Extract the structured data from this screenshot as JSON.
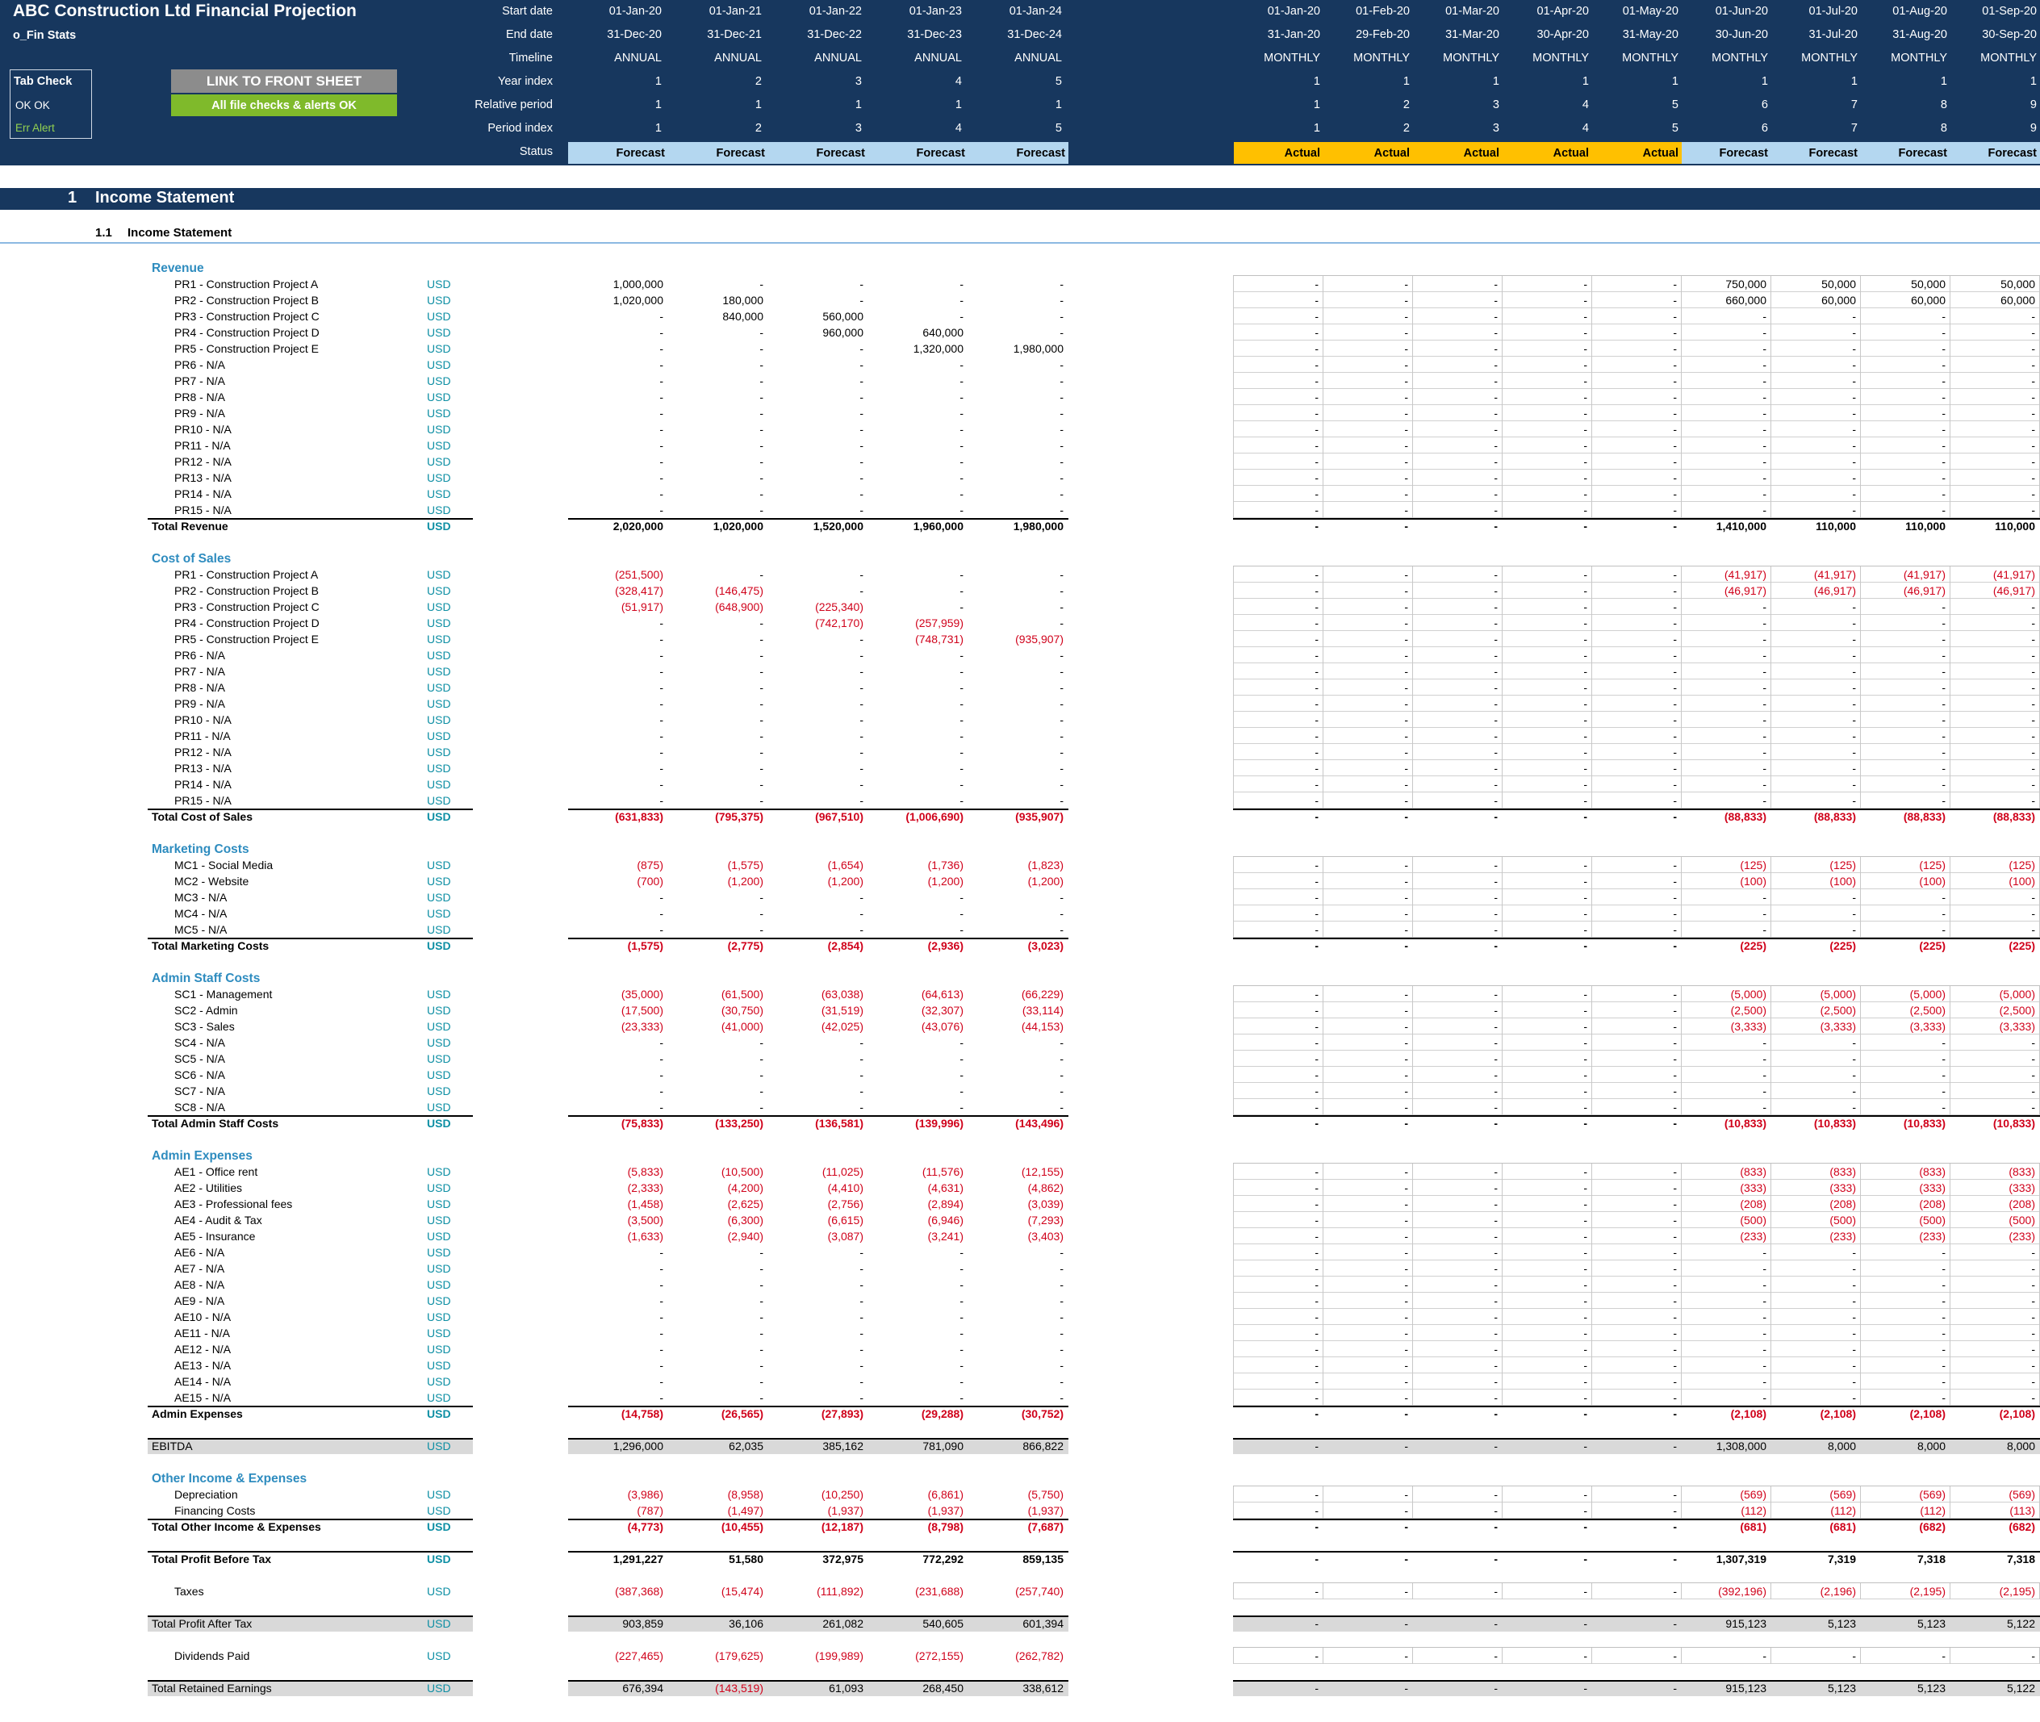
{
  "header": {
    "title": "ABC Construction Ltd Financial Projection",
    "sheet": "o_Fin Stats",
    "tab_check": {
      "title": "Tab Check",
      "ok_row": "OK    OK",
      "err_row": "Err   Alert"
    },
    "link_button": "LINK TO FRONT SHEET",
    "checks_status": "All file checks & alerts OK",
    "row_labels": [
      "Start date",
      "End date",
      "Timeline",
      "Year index",
      "Relative period",
      "Period index",
      "Status"
    ],
    "annual": {
      "start": [
        "01-Jan-20",
        "01-Jan-21",
        "01-Jan-22",
        "01-Jan-23",
        "01-Jan-24"
      ],
      "end": [
        "31-Dec-20",
        "31-Dec-21",
        "31-Dec-22",
        "31-Dec-23",
        "31-Dec-24"
      ],
      "timeline": [
        "ANNUAL",
        "ANNUAL",
        "ANNUAL",
        "ANNUAL",
        "ANNUAL"
      ],
      "year_index": [
        "1",
        "2",
        "3",
        "4",
        "5"
      ],
      "relative": [
        "1",
        "1",
        "1",
        "1",
        "1"
      ],
      "period": [
        "1",
        "2",
        "3",
        "4",
        "5"
      ],
      "status": [
        "Forecast",
        "Forecast",
        "Forecast",
        "Forecast",
        "Forecast"
      ]
    },
    "monthly": {
      "start": [
        "01-Jan-20",
        "01-Feb-20",
        "01-Mar-20",
        "01-Apr-20",
        "01-May-20",
        "01-Jun-20",
        "01-Jul-20",
        "01-Aug-20",
        "01-Sep-20"
      ],
      "end": [
        "31-Jan-20",
        "29-Feb-20",
        "31-Mar-20",
        "30-Apr-20",
        "31-May-20",
        "30-Jun-20",
        "31-Jul-20",
        "31-Aug-20",
        "30-Sep-20"
      ],
      "timeline": [
        "MONTHLY",
        "MONTHLY",
        "MONTHLY",
        "MONTHLY",
        "MONTHLY",
        "MONTHLY",
        "MONTHLY",
        "MONTHLY",
        "MONTHLY"
      ],
      "year_index": [
        "1",
        "1",
        "1",
        "1",
        "1",
        "1",
        "1",
        "1",
        "1"
      ],
      "relative": [
        "1",
        "2",
        "3",
        "4",
        "5",
        "6",
        "7",
        "8",
        "9"
      ],
      "period": [
        "1",
        "2",
        "3",
        "4",
        "5",
        "6",
        "7",
        "8",
        "9"
      ],
      "status": [
        "Actual",
        "Actual",
        "Actual",
        "Actual",
        "Actual",
        "Forecast",
        "Forecast",
        "Forecast",
        "Forecast"
      ]
    }
  },
  "section": {
    "number": "1",
    "title": "Income Statement"
  },
  "subsection": {
    "number": "1.1",
    "title": "Income Statement"
  },
  "unit": "USD",
  "colors": {
    "header_bg": "#17375e",
    "forecast": "#b4d7f0",
    "actual": "#ffc000",
    "negative": "#d0021b",
    "group_label": "#2e8cbf",
    "unit": "#0e8fa4"
  },
  "rows": [
    {
      "type": "group",
      "label": "Revenue"
    },
    {
      "type": "item",
      "label": "PR1 - Construction Project A",
      "annual": [
        "1,000,000",
        "-",
        "-",
        "-",
        "-"
      ],
      "monthly": [
        "-",
        "-",
        "-",
        "-",
        "-",
        "750,000",
        "50,000",
        "50,000",
        "50,000"
      ]
    },
    {
      "type": "item",
      "label": "PR2 - Construction Project B",
      "annual": [
        "1,020,000",
        "180,000",
        "-",
        "-",
        "-"
      ],
      "monthly": [
        "-",
        "-",
        "-",
        "-",
        "-",
        "660,000",
        "60,000",
        "60,000",
        "60,000"
      ]
    },
    {
      "type": "item",
      "label": "PR3 - Construction Project C",
      "annual": [
        "-",
        "840,000",
        "560,000",
        "-",
        "-"
      ],
      "monthly": [
        "-",
        "-",
        "-",
        "-",
        "-",
        "-",
        "-",
        "-",
        "-"
      ]
    },
    {
      "type": "item",
      "label": "PR4 - Construction Project D",
      "annual": [
        "-",
        "-",
        "960,000",
        "640,000",
        "-"
      ],
      "monthly": [
        "-",
        "-",
        "-",
        "-",
        "-",
        "-",
        "-",
        "-",
        "-"
      ]
    },
    {
      "type": "item",
      "label": "PR5 - Construction Project E",
      "annual": [
        "-",
        "-",
        "-",
        "1,320,000",
        "1,980,000"
      ],
      "monthly": [
        "-",
        "-",
        "-",
        "-",
        "-",
        "-",
        "-",
        "-",
        "-"
      ]
    },
    {
      "type": "item",
      "label": "PR6 - N/A"
    },
    {
      "type": "item",
      "label": "PR7 - N/A"
    },
    {
      "type": "item",
      "label": "PR8 - N/A"
    },
    {
      "type": "item",
      "label": "PR9 - N/A"
    },
    {
      "type": "item",
      "label": "PR10 - N/A"
    },
    {
      "type": "item",
      "label": "PR11 - N/A"
    },
    {
      "type": "item",
      "label": "PR12 - N/A"
    },
    {
      "type": "item",
      "label": "PR13 - N/A"
    },
    {
      "type": "item",
      "label": "PR14 - N/A"
    },
    {
      "type": "item",
      "label": "PR15 - N/A"
    },
    {
      "type": "total",
      "label": "Total Revenue",
      "annual": [
        "2,020,000",
        "1,020,000",
        "1,520,000",
        "1,960,000",
        "1,980,000"
      ],
      "monthly": [
        "-",
        "-",
        "-",
        "-",
        "-",
        "1,410,000",
        "110,000",
        "110,000",
        "110,000"
      ]
    },
    {
      "type": "spacer"
    },
    {
      "type": "group",
      "label": "Cost of Sales"
    },
    {
      "type": "item",
      "label": "PR1 - Construction Project A",
      "annual": [
        "(251,500)",
        "-",
        "-",
        "-",
        "-"
      ],
      "monthly": [
        "-",
        "-",
        "-",
        "-",
        "-",
        "(41,917)",
        "(41,917)",
        "(41,917)",
        "(41,917)"
      ]
    },
    {
      "type": "item",
      "label": "PR2 - Construction Project B",
      "annual": [
        "(328,417)",
        "(146,475)",
        "-",
        "-",
        "-"
      ],
      "monthly": [
        "-",
        "-",
        "-",
        "-",
        "-",
        "(46,917)",
        "(46,917)",
        "(46,917)",
        "(46,917)"
      ]
    },
    {
      "type": "item",
      "label": "PR3 - Construction Project C",
      "annual": [
        "(51,917)",
        "(648,900)",
        "(225,340)",
        "-",
        "-"
      ],
      "monthly": [
        "-",
        "-",
        "-",
        "-",
        "-",
        "-",
        "-",
        "-",
        "-"
      ]
    },
    {
      "type": "item",
      "label": "PR4 - Construction Project D",
      "annual": [
        "-",
        "-",
        "(742,170)",
        "(257,959)",
        "-"
      ],
      "monthly": [
        "-",
        "-",
        "-",
        "-",
        "-",
        "-",
        "-",
        "-",
        "-"
      ]
    },
    {
      "type": "item",
      "label": "PR5 - Construction Project E",
      "annual": [
        "-",
        "-",
        "-",
        "(748,731)",
        "(935,907)"
      ],
      "monthly": [
        "-",
        "-",
        "-",
        "-",
        "-",
        "-",
        "-",
        "-",
        "-"
      ]
    },
    {
      "type": "item",
      "label": "PR6 - N/A"
    },
    {
      "type": "item",
      "label": "PR7 - N/A"
    },
    {
      "type": "item",
      "label": "PR8 - N/A"
    },
    {
      "type": "item",
      "label": "PR9 - N/A"
    },
    {
      "type": "item",
      "label": "PR10 - N/A"
    },
    {
      "type": "item",
      "label": "PR11 - N/A"
    },
    {
      "type": "item",
      "label": "PR12 - N/A"
    },
    {
      "type": "item",
      "label": "PR13 - N/A"
    },
    {
      "type": "item",
      "label": "PR14 - N/A"
    },
    {
      "type": "item",
      "label": "PR15 - N/A"
    },
    {
      "type": "total",
      "label": "Total Cost of Sales",
      "annual": [
        "(631,833)",
        "(795,375)",
        "(967,510)",
        "(1,006,690)",
        "(935,907)"
      ],
      "monthly": [
        "-",
        "-",
        "-",
        "-",
        "-",
        "(88,833)",
        "(88,833)",
        "(88,833)",
        "(88,833)"
      ]
    },
    {
      "type": "spacer"
    },
    {
      "type": "group",
      "label": "Marketing Costs"
    },
    {
      "type": "item",
      "label": "MC1 - Social Media",
      "annual": [
        "(875)",
        "(1,575)",
        "(1,654)",
        "(1,736)",
        "(1,823)"
      ],
      "monthly": [
        "-",
        "-",
        "-",
        "-",
        "-",
        "(125)",
        "(125)",
        "(125)",
        "(125)"
      ]
    },
    {
      "type": "item",
      "label": "MC2 - Website",
      "annual": [
        "(700)",
        "(1,200)",
        "(1,200)",
        "(1,200)",
        "(1,200)"
      ],
      "monthly": [
        "-",
        "-",
        "-",
        "-",
        "-",
        "(100)",
        "(100)",
        "(100)",
        "(100)"
      ]
    },
    {
      "type": "item",
      "label": "MC3 - N/A"
    },
    {
      "type": "item",
      "label": "MC4 - N/A"
    },
    {
      "type": "item",
      "label": "MC5 - N/A"
    },
    {
      "type": "total",
      "label": "Total Marketing Costs",
      "annual": [
        "(1,575)",
        "(2,775)",
        "(2,854)",
        "(2,936)",
        "(3,023)"
      ],
      "monthly": [
        "-",
        "-",
        "-",
        "-",
        "-",
        "(225)",
        "(225)",
        "(225)",
        "(225)"
      ]
    },
    {
      "type": "spacer"
    },
    {
      "type": "group",
      "label": "Admin Staff Costs"
    },
    {
      "type": "item",
      "label": "SC1 - Management",
      "annual": [
        "(35,000)",
        "(61,500)",
        "(63,038)",
        "(64,613)",
        "(66,229)"
      ],
      "monthly": [
        "-",
        "-",
        "-",
        "-",
        "-",
        "(5,000)",
        "(5,000)",
        "(5,000)",
        "(5,000)"
      ]
    },
    {
      "type": "item",
      "label": "SC2 - Admin",
      "annual": [
        "(17,500)",
        "(30,750)",
        "(31,519)",
        "(32,307)",
        "(33,114)"
      ],
      "monthly": [
        "-",
        "-",
        "-",
        "-",
        "-",
        "(2,500)",
        "(2,500)",
        "(2,500)",
        "(2,500)"
      ]
    },
    {
      "type": "item",
      "label": "SC3 - Sales",
      "annual": [
        "(23,333)",
        "(41,000)",
        "(42,025)",
        "(43,076)",
        "(44,153)"
      ],
      "monthly": [
        "-",
        "-",
        "-",
        "-",
        "-",
        "(3,333)",
        "(3,333)",
        "(3,333)",
        "(3,333)"
      ]
    },
    {
      "type": "item",
      "label": "SC4 - N/A"
    },
    {
      "type": "item",
      "label": "SC5 - N/A"
    },
    {
      "type": "item",
      "label": "SC6 - N/A"
    },
    {
      "type": "item",
      "label": "SC7 - N/A"
    },
    {
      "type": "item",
      "label": "SC8 - N/A"
    },
    {
      "type": "total",
      "label": "Total Admin Staff Costs",
      "annual": [
        "(75,833)",
        "(133,250)",
        "(136,581)",
        "(139,996)",
        "(143,496)"
      ],
      "monthly": [
        "-",
        "-",
        "-",
        "-",
        "-",
        "(10,833)",
        "(10,833)",
        "(10,833)",
        "(10,833)"
      ]
    },
    {
      "type": "spacer"
    },
    {
      "type": "group",
      "label": "Admin Expenses"
    },
    {
      "type": "item",
      "label": "AE1 - Office rent",
      "annual": [
        "(5,833)",
        "(10,500)",
        "(11,025)",
        "(11,576)",
        "(12,155)"
      ],
      "monthly": [
        "-",
        "-",
        "-",
        "-",
        "-",
        "(833)",
        "(833)",
        "(833)",
        "(833)"
      ]
    },
    {
      "type": "item",
      "label": "AE2 - Utilities",
      "annual": [
        "(2,333)",
        "(4,200)",
        "(4,410)",
        "(4,631)",
        "(4,862)"
      ],
      "monthly": [
        "-",
        "-",
        "-",
        "-",
        "-",
        "(333)",
        "(333)",
        "(333)",
        "(333)"
      ]
    },
    {
      "type": "item",
      "label": "AE3 - Professional fees",
      "annual": [
        "(1,458)",
        "(2,625)",
        "(2,756)",
        "(2,894)",
        "(3,039)"
      ],
      "monthly": [
        "-",
        "-",
        "-",
        "-",
        "-",
        "(208)",
        "(208)",
        "(208)",
        "(208)"
      ]
    },
    {
      "type": "item",
      "label": "AE4 - Audit & Tax",
      "annual": [
        "(3,500)",
        "(6,300)",
        "(6,615)",
        "(6,946)",
        "(7,293)"
      ],
      "monthly": [
        "-",
        "-",
        "-",
        "-",
        "-",
        "(500)",
        "(500)",
        "(500)",
        "(500)"
      ]
    },
    {
      "type": "item",
      "label": "AE5 - Insurance",
      "annual": [
        "(1,633)",
        "(2,940)",
        "(3,087)",
        "(3,241)",
        "(3,403)"
      ],
      "monthly": [
        "-",
        "-",
        "-",
        "-",
        "-",
        "(233)",
        "(233)",
        "(233)",
        "(233)"
      ]
    },
    {
      "type": "item",
      "label": "AE6 - N/A"
    },
    {
      "type": "item",
      "label": "AE7 - N/A"
    },
    {
      "type": "item",
      "label": "AE8 - N/A"
    },
    {
      "type": "item",
      "label": "AE9 - N/A"
    },
    {
      "type": "item",
      "label": "AE10 - N/A"
    },
    {
      "type": "item",
      "label": "AE11 - N/A"
    },
    {
      "type": "item",
      "label": "AE12 - N/A"
    },
    {
      "type": "item",
      "label": "AE13 - N/A"
    },
    {
      "type": "item",
      "label": "AE14 - N/A"
    },
    {
      "type": "item",
      "label": "AE15 - N/A"
    },
    {
      "type": "total",
      "label": "Admin Expenses",
      "annual": [
        "(14,758)",
        "(26,565)",
        "(27,893)",
        "(29,288)",
        "(30,752)"
      ],
      "monthly": [
        "-",
        "-",
        "-",
        "-",
        "-",
        "(2,108)",
        "(2,108)",
        "(2,108)",
        "(2,108)"
      ]
    },
    {
      "type": "spacer"
    },
    {
      "type": "grey",
      "label": "EBITDA",
      "annual": [
        "1,296,000",
        "62,035",
        "385,162",
        "781,090",
        "866,822"
      ],
      "monthly": [
        "-",
        "-",
        "-",
        "-",
        "-",
        "1,308,000",
        "8,000",
        "8,000",
        "8,000"
      ]
    },
    {
      "type": "spacer"
    },
    {
      "type": "group",
      "label": "Other Income & Expenses"
    },
    {
      "type": "item",
      "label": "Depreciation",
      "annual": [
        "(3,986)",
        "(8,958)",
        "(10,250)",
        "(6,861)",
        "(5,750)"
      ],
      "monthly": [
        "-",
        "-",
        "-",
        "-",
        "-",
        "(569)",
        "(569)",
        "(569)",
        "(569)"
      ]
    },
    {
      "type": "item",
      "label": "Financing Costs",
      "annual": [
        "(787)",
        "(1,497)",
        "(1,937)",
        "(1,937)",
        "(1,937)"
      ],
      "monthly": [
        "-",
        "-",
        "-",
        "-",
        "-",
        "(112)",
        "(112)",
        "(112)",
        "(113)"
      ]
    },
    {
      "type": "total",
      "label": "Total Other Income & Expenses",
      "annual": [
        "(4,773)",
        "(10,455)",
        "(12,187)",
        "(8,798)",
        "(7,687)"
      ],
      "monthly": [
        "-",
        "-",
        "-",
        "-",
        "-",
        "(681)",
        "(681)",
        "(682)",
        "(682)"
      ]
    },
    {
      "type": "spacer"
    },
    {
      "type": "total",
      "label": "Total Profit Before Tax",
      "annual": [
        "1,291,227",
        "51,580",
        "372,975",
        "772,292",
        "859,135"
      ],
      "monthly": [
        "-",
        "-",
        "-",
        "-",
        "-",
        "1,307,319",
        "7,319",
        "7,318",
        "7,318"
      ]
    },
    {
      "type": "spacer"
    },
    {
      "type": "single",
      "label": "Taxes",
      "annual": [
        "(387,368)",
        "(15,474)",
        "(111,892)",
        "(231,688)",
        "(257,740)"
      ],
      "monthly": [
        "-",
        "-",
        "-",
        "-",
        "-",
        "(392,196)",
        "(2,196)",
        "(2,195)",
        "(2,195)"
      ]
    },
    {
      "type": "spacer"
    },
    {
      "type": "grey",
      "label": "Total Profit After Tax",
      "annual": [
        "903,859",
        "36,106",
        "261,082",
        "540,605",
        "601,394"
      ],
      "monthly": [
        "-",
        "-",
        "-",
        "-",
        "-",
        "915,123",
        "5,123",
        "5,123",
        "5,122"
      ]
    },
    {
      "type": "spacer"
    },
    {
      "type": "single",
      "label": "Dividends Paid",
      "annual": [
        "(227,465)",
        "(179,625)",
        "(199,989)",
        "(272,155)",
        "(262,782)"
      ],
      "monthly": [
        "-",
        "-",
        "-",
        "-",
        "-",
        "-",
        "-",
        "-",
        "-"
      ]
    },
    {
      "type": "spacer"
    },
    {
      "type": "grey",
      "label": "Total Retained Earnings",
      "annual": [
        "676,394",
        "(143,519)",
        "61,093",
        "268,450",
        "338,612"
      ],
      "monthly": [
        "-",
        "-",
        "-",
        "-",
        "-",
        "915,123",
        "5,123",
        "5,123",
        "5,122"
      ]
    }
  ]
}
